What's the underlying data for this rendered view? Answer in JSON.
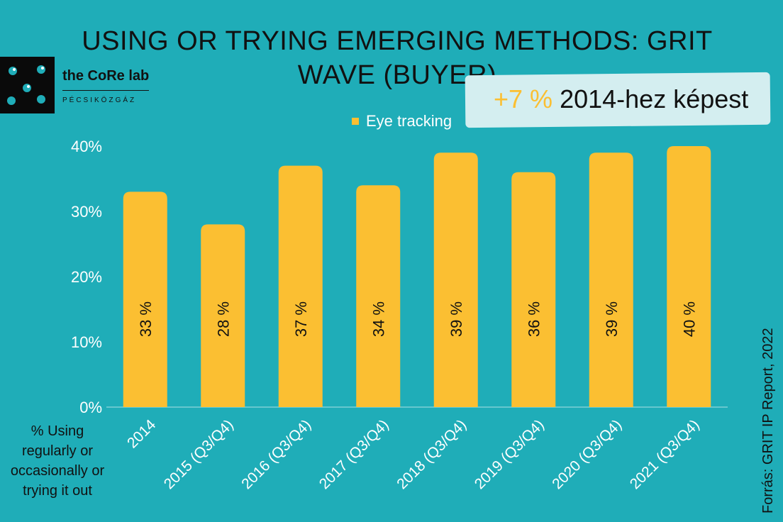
{
  "title": "USING OR TRYING EMERGING METHODS: GRIT WAVE (BUYER)",
  "lab": {
    "name": "the CoRe lab",
    "subtitle": "PÉCSIKÖZGÁZ"
  },
  "callout": {
    "change": "+7 %",
    "text": "2014-hez képest"
  },
  "ylabel_note": "% Using regularly or occasionally or trying it out",
  "source": "Forrás: GRIT IP Report, 2022",
  "colors": {
    "background": "#1fadb8",
    "bar": "#fbbf32",
    "axis_text": "#ffffff",
    "label_text": "#111111"
  },
  "chart_data": {
    "type": "bar",
    "categories": [
      "2014",
      "2015 (Q3/Q4)",
      "2016 (Q3/Q4)",
      "2017 (Q3/Q4)",
      "2018 (Q3/Q4)",
      "2019 (Q3/Q4)",
      "2020 (Q3/Q4)",
      "2021 (Q3/Q4)"
    ],
    "series": [
      {
        "name": "Eye tracking",
        "values": [
          33,
          28,
          37,
          34,
          39,
          36,
          39,
          40
        ]
      }
    ],
    "data_labels": [
      "33 %",
      "28 %",
      "37 %",
      "34 %",
      "39 %",
      "36 %",
      "39 %",
      "40 %"
    ],
    "yticks": [
      "0%",
      "10%",
      "20%",
      "30%",
      "40%"
    ],
    "ylim": [
      0,
      40
    ],
    "legend": "top",
    "grid": false
  }
}
